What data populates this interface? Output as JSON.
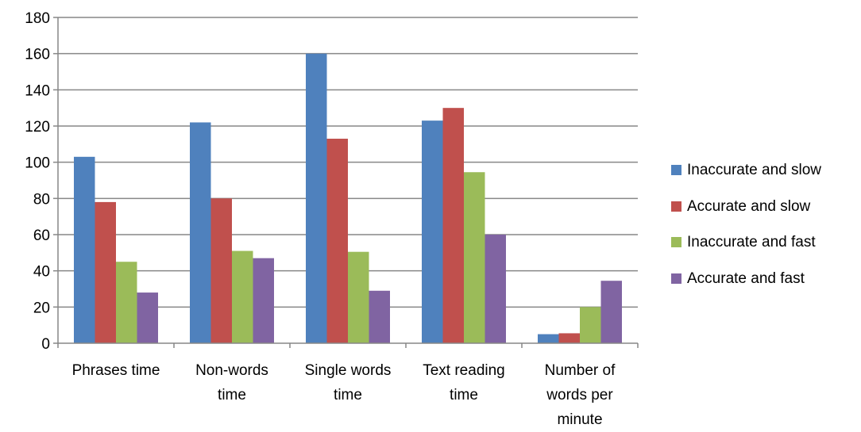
{
  "chart_data": {
    "type": "bar",
    "title": "",
    "xlabel": "",
    "ylabel": "",
    "ylim": [
      0,
      180
    ],
    "yticks": [
      0,
      20,
      40,
      60,
      80,
      100,
      120,
      140,
      160,
      180
    ],
    "grid": true,
    "legend_position": "right",
    "categories": [
      [
        "Phrases time"
      ],
      [
        "Non-words",
        "time"
      ],
      [
        "Single words",
        "time"
      ],
      [
        "Text reading",
        "time"
      ],
      [
        "Number of",
        "words per",
        "minute"
      ]
    ],
    "series": [
      {
        "name": "Inaccurate and slow",
        "color": "#4f81bd",
        "values": [
          103,
          122,
          160,
          123,
          5
        ]
      },
      {
        "name": "Accurate and slow",
        "color": "#c0504d",
        "values": [
          78,
          80,
          113,
          130,
          5.5
        ]
      },
      {
        "name": "Inaccurate and fast",
        "color": "#9bbb59",
        "values": [
          45,
          51,
          50.5,
          94.5,
          20
        ]
      },
      {
        "name": "Accurate and fast",
        "color": "#8064a2",
        "values": [
          28,
          47,
          29,
          60,
          34.5
        ]
      }
    ]
  }
}
